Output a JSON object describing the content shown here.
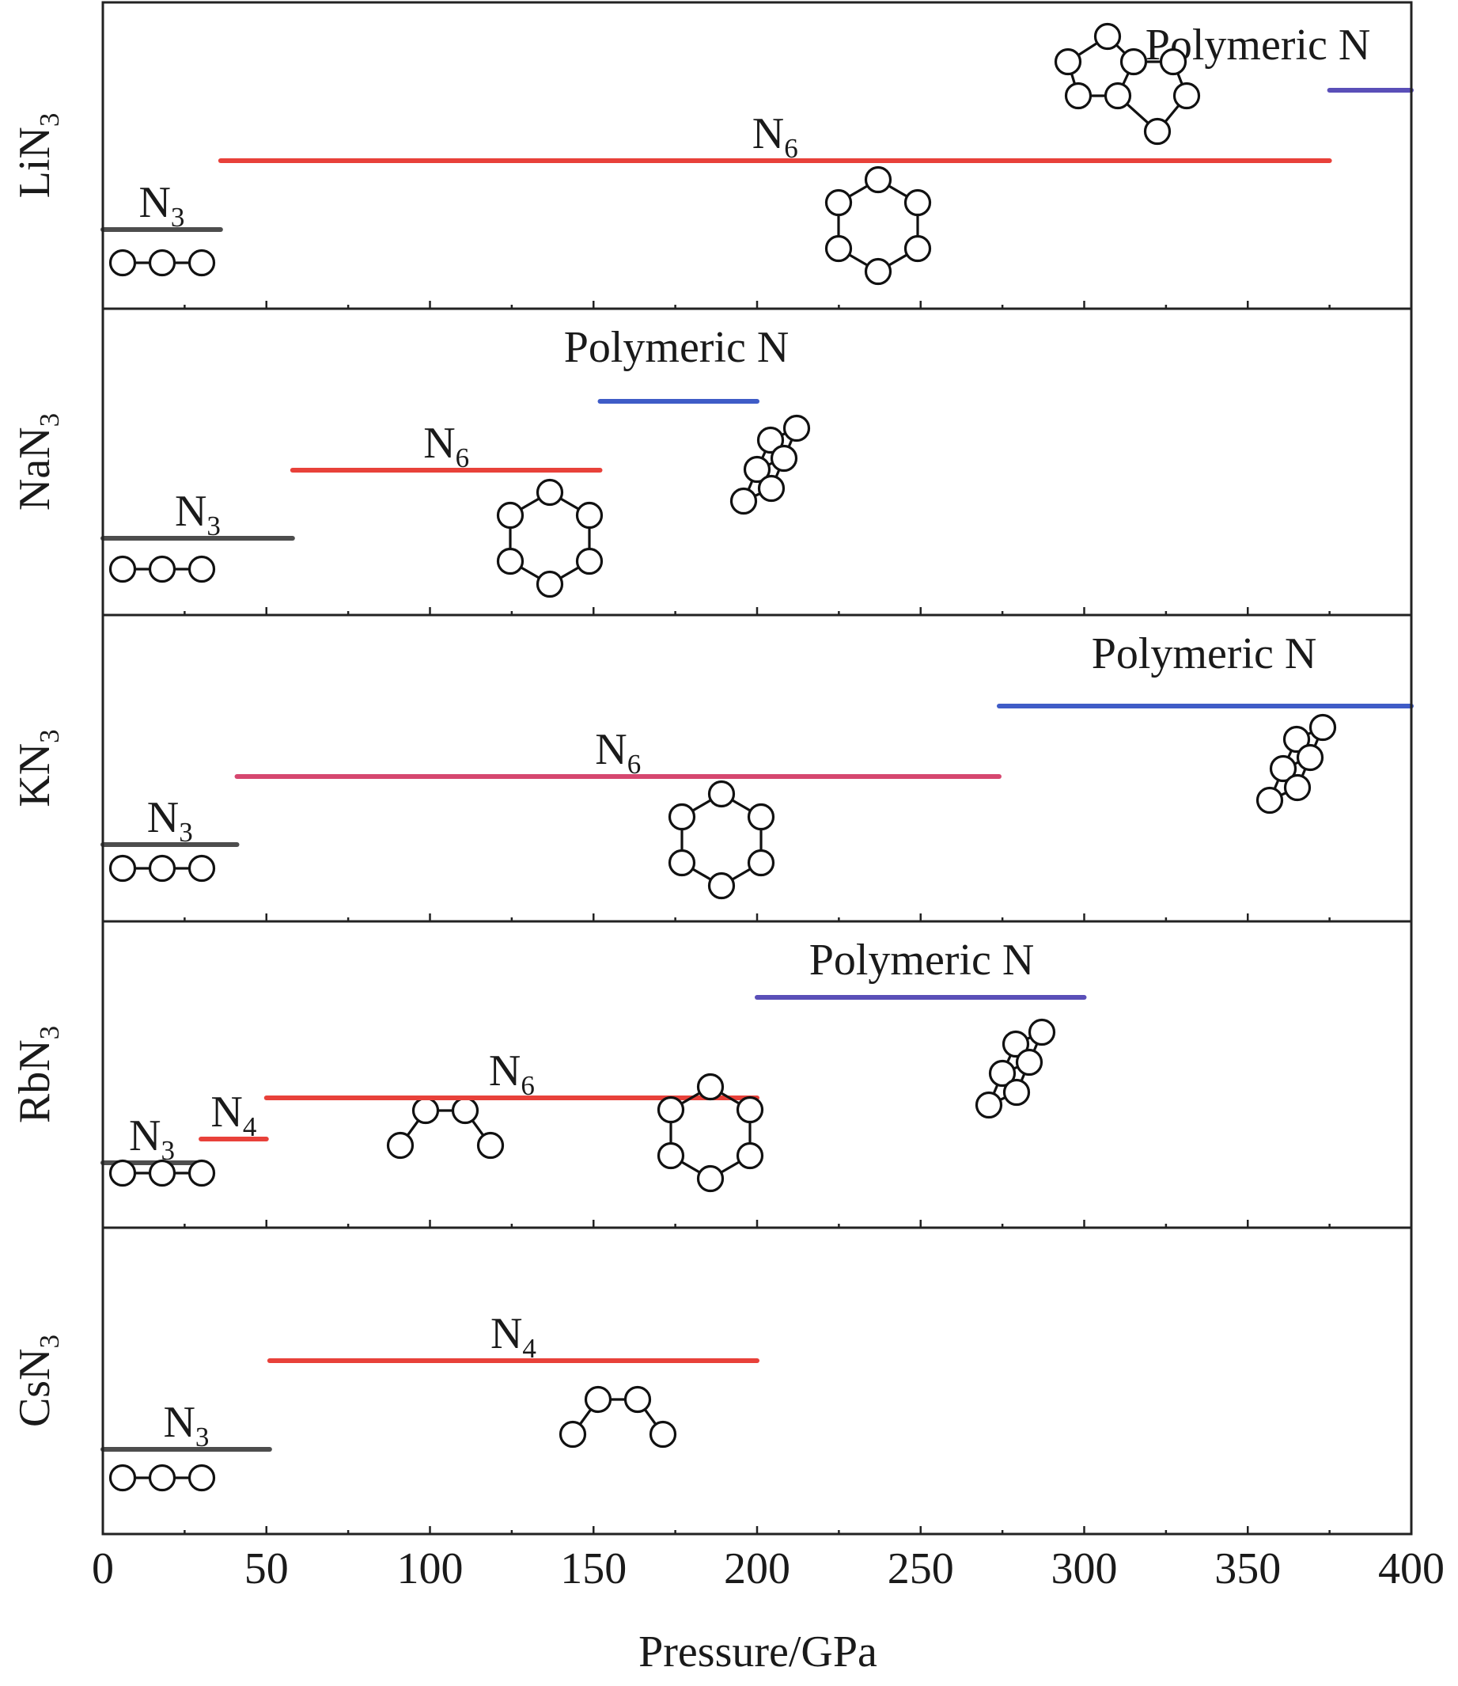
{
  "chart_data": {
    "type": "range-bar",
    "xlabel": "Pressure/GPa",
    "xlim": [
      0,
      400
    ],
    "xticks": [
      0,
      50,
      100,
      150,
      200,
      250,
      300,
      350,
      400
    ],
    "xticks_minor": [
      25,
      75,
      125,
      175,
      225,
      275,
      325,
      375
    ],
    "colors": {
      "N3": "#4d4d4d",
      "N4": "#e8413a",
      "N6": "#e8413a",
      "N6_KN3": "#d6476f",
      "Polymeric": "#3f5cc7",
      "Polymeric_alt": "#5a4fb8"
    },
    "panels": [
      {
        "compound": "LiN",
        "subscript": "3",
        "segments": [
          {
            "phase": "N3",
            "label_main": "N",
            "label_sub": "3",
            "start": 0,
            "end": 36,
            "color": "#4d4d4d",
            "motif": "chain3-icon"
          },
          {
            "phase": "N6",
            "label_main": "N",
            "label_sub": "6",
            "start": 36,
            "end": 375,
            "color": "#e8413a",
            "motif": "hexagon-ring-icon"
          },
          {
            "phase": "Polymeric N",
            "label_main": "Polymeric N",
            "label_sub": "",
            "start": 375,
            "end": 400,
            "color": "#5a4fb8",
            "motif": "fused-rings-icon"
          }
        ]
      },
      {
        "compound": "NaN",
        "subscript": "3",
        "segments": [
          {
            "phase": "N3",
            "label_main": "N",
            "label_sub": "3",
            "start": 0,
            "end": 58,
            "color": "#4d4d4d",
            "motif": "chain3-icon"
          },
          {
            "phase": "N6",
            "label_main": "N",
            "label_sub": "6",
            "start": 58,
            "end": 152,
            "color": "#e8413a",
            "motif": "hexagon-ring-icon"
          },
          {
            "phase": "Polymeric N",
            "label_main": "Polymeric N",
            "label_sub": "",
            "start": 152,
            "end": 200,
            "color": "#3f5cc7",
            "motif": "ladder-chain-icon"
          }
        ]
      },
      {
        "compound": "KN",
        "subscript": "3",
        "segments": [
          {
            "phase": "N3",
            "label_main": "N",
            "label_sub": "3",
            "start": 0,
            "end": 41,
            "color": "#4d4d4d",
            "motif": "chain3-icon"
          },
          {
            "phase": "N6",
            "label_main": "N",
            "label_sub": "6",
            "start": 41,
            "end": 274,
            "color": "#d6476f",
            "motif": "hexagon-ring-icon"
          },
          {
            "phase": "Polymeric N",
            "label_main": "Polymeric N",
            "label_sub": "",
            "start": 274,
            "end": 400,
            "color": "#3f5cc7",
            "motif": "ladder-chain-icon"
          }
        ]
      },
      {
        "compound": "RbN",
        "subscript": "3",
        "segments": [
          {
            "phase": "N3",
            "label_main": "N",
            "label_sub": "3",
            "start": 0,
            "end": 30,
            "color": "#4d4d4d",
            "motif": "chain3-icon"
          },
          {
            "phase": "N4",
            "label_main": "N",
            "label_sub": "4",
            "start": 30,
            "end": 50,
            "color": "#e8413a",
            "motif": "zigzag4-icon"
          },
          {
            "phase": "N6",
            "label_main": "N",
            "label_sub": "6",
            "start": 50,
            "end": 200,
            "color": "#e8413a",
            "motif": "hexagon-ring-icon"
          },
          {
            "phase": "Polymeric N",
            "label_main": "Polymeric N",
            "label_sub": "",
            "start": 200,
            "end": 300,
            "color": "#5a4fb8",
            "motif": "ladder-chain-icon"
          }
        ]
      },
      {
        "compound": "CsN",
        "subscript": "3",
        "segments": [
          {
            "phase": "N3",
            "label_main": "N",
            "label_sub": "3",
            "start": 0,
            "end": 51,
            "color": "#4d4d4d",
            "motif": "chain3-icon"
          },
          {
            "phase": "N4",
            "label_main": "N",
            "label_sub": "4",
            "start": 51,
            "end": 200,
            "color": "#e8413a",
            "motif": "zigzag4-icon"
          }
        ]
      }
    ]
  }
}
